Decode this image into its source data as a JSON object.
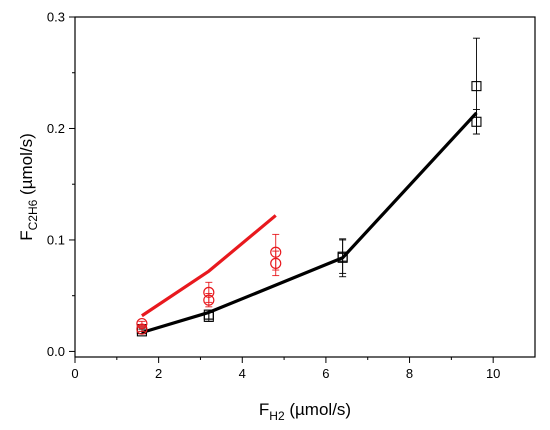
{
  "chart_data": {
    "type": "scatter",
    "xlabel": {
      "main": "F",
      "sub": "H2",
      "unit": " (µmol/s)"
    },
    "ylabel": {
      "main": "F",
      "sub": "C2H6",
      "unit": " (µmol/s)"
    },
    "xlim": [
      0,
      11
    ],
    "ylim": [
      -0.005,
      0.3
    ],
    "xticks": [
      0,
      2,
      4,
      6,
      8,
      10
    ],
    "xtick_labels": [
      "0",
      "2",
      "4",
      "6",
      "8",
      "10"
    ],
    "yticks": [
      0.0,
      0.1,
      0.2,
      0.3
    ],
    "ytick_labels": [
      "0.0",
      "0.1",
      "0.2",
      "0.3"
    ],
    "grid": false,
    "colors": {
      "black": "#000000",
      "red": "#e8191e"
    },
    "series": [
      {
        "kind": "points",
        "marker": "square",
        "color": "#000000",
        "x": [
          1.6,
          1.6,
          3.2,
          3.2,
          6.4,
          6.4,
          9.6,
          9.6
        ],
        "y": [
          0.018,
          0.02,
          0.031,
          0.033,
          0.084,
          0.085,
          0.206,
          0.238
        ],
        "err": [
          0.002,
          0.002,
          0.004,
          0.004,
          0.017,
          0.015,
          0.011,
          0.043
        ]
      },
      {
        "kind": "points",
        "marker": "circle",
        "color": "#e8191e",
        "x": [
          1.6,
          1.6,
          3.2,
          3.2,
          4.8,
          4.8
        ],
        "y": [
          0.02,
          0.025,
          0.046,
          0.053,
          0.079,
          0.089
        ],
        "err": [
          0.002,
          0.002,
          0.006,
          0.009,
          0.011,
          0.016
        ]
      },
      {
        "kind": "line",
        "color": "#000000",
        "x": [
          1.6,
          3.2,
          6.4,
          9.6
        ],
        "y": [
          0.017,
          0.035,
          0.084,
          0.214
        ]
      },
      {
        "kind": "line",
        "color": "#e8191e",
        "x": [
          1.6,
          3.2,
          4.8
        ],
        "y": [
          0.032,
          0.072,
          0.122
        ]
      }
    ]
  }
}
